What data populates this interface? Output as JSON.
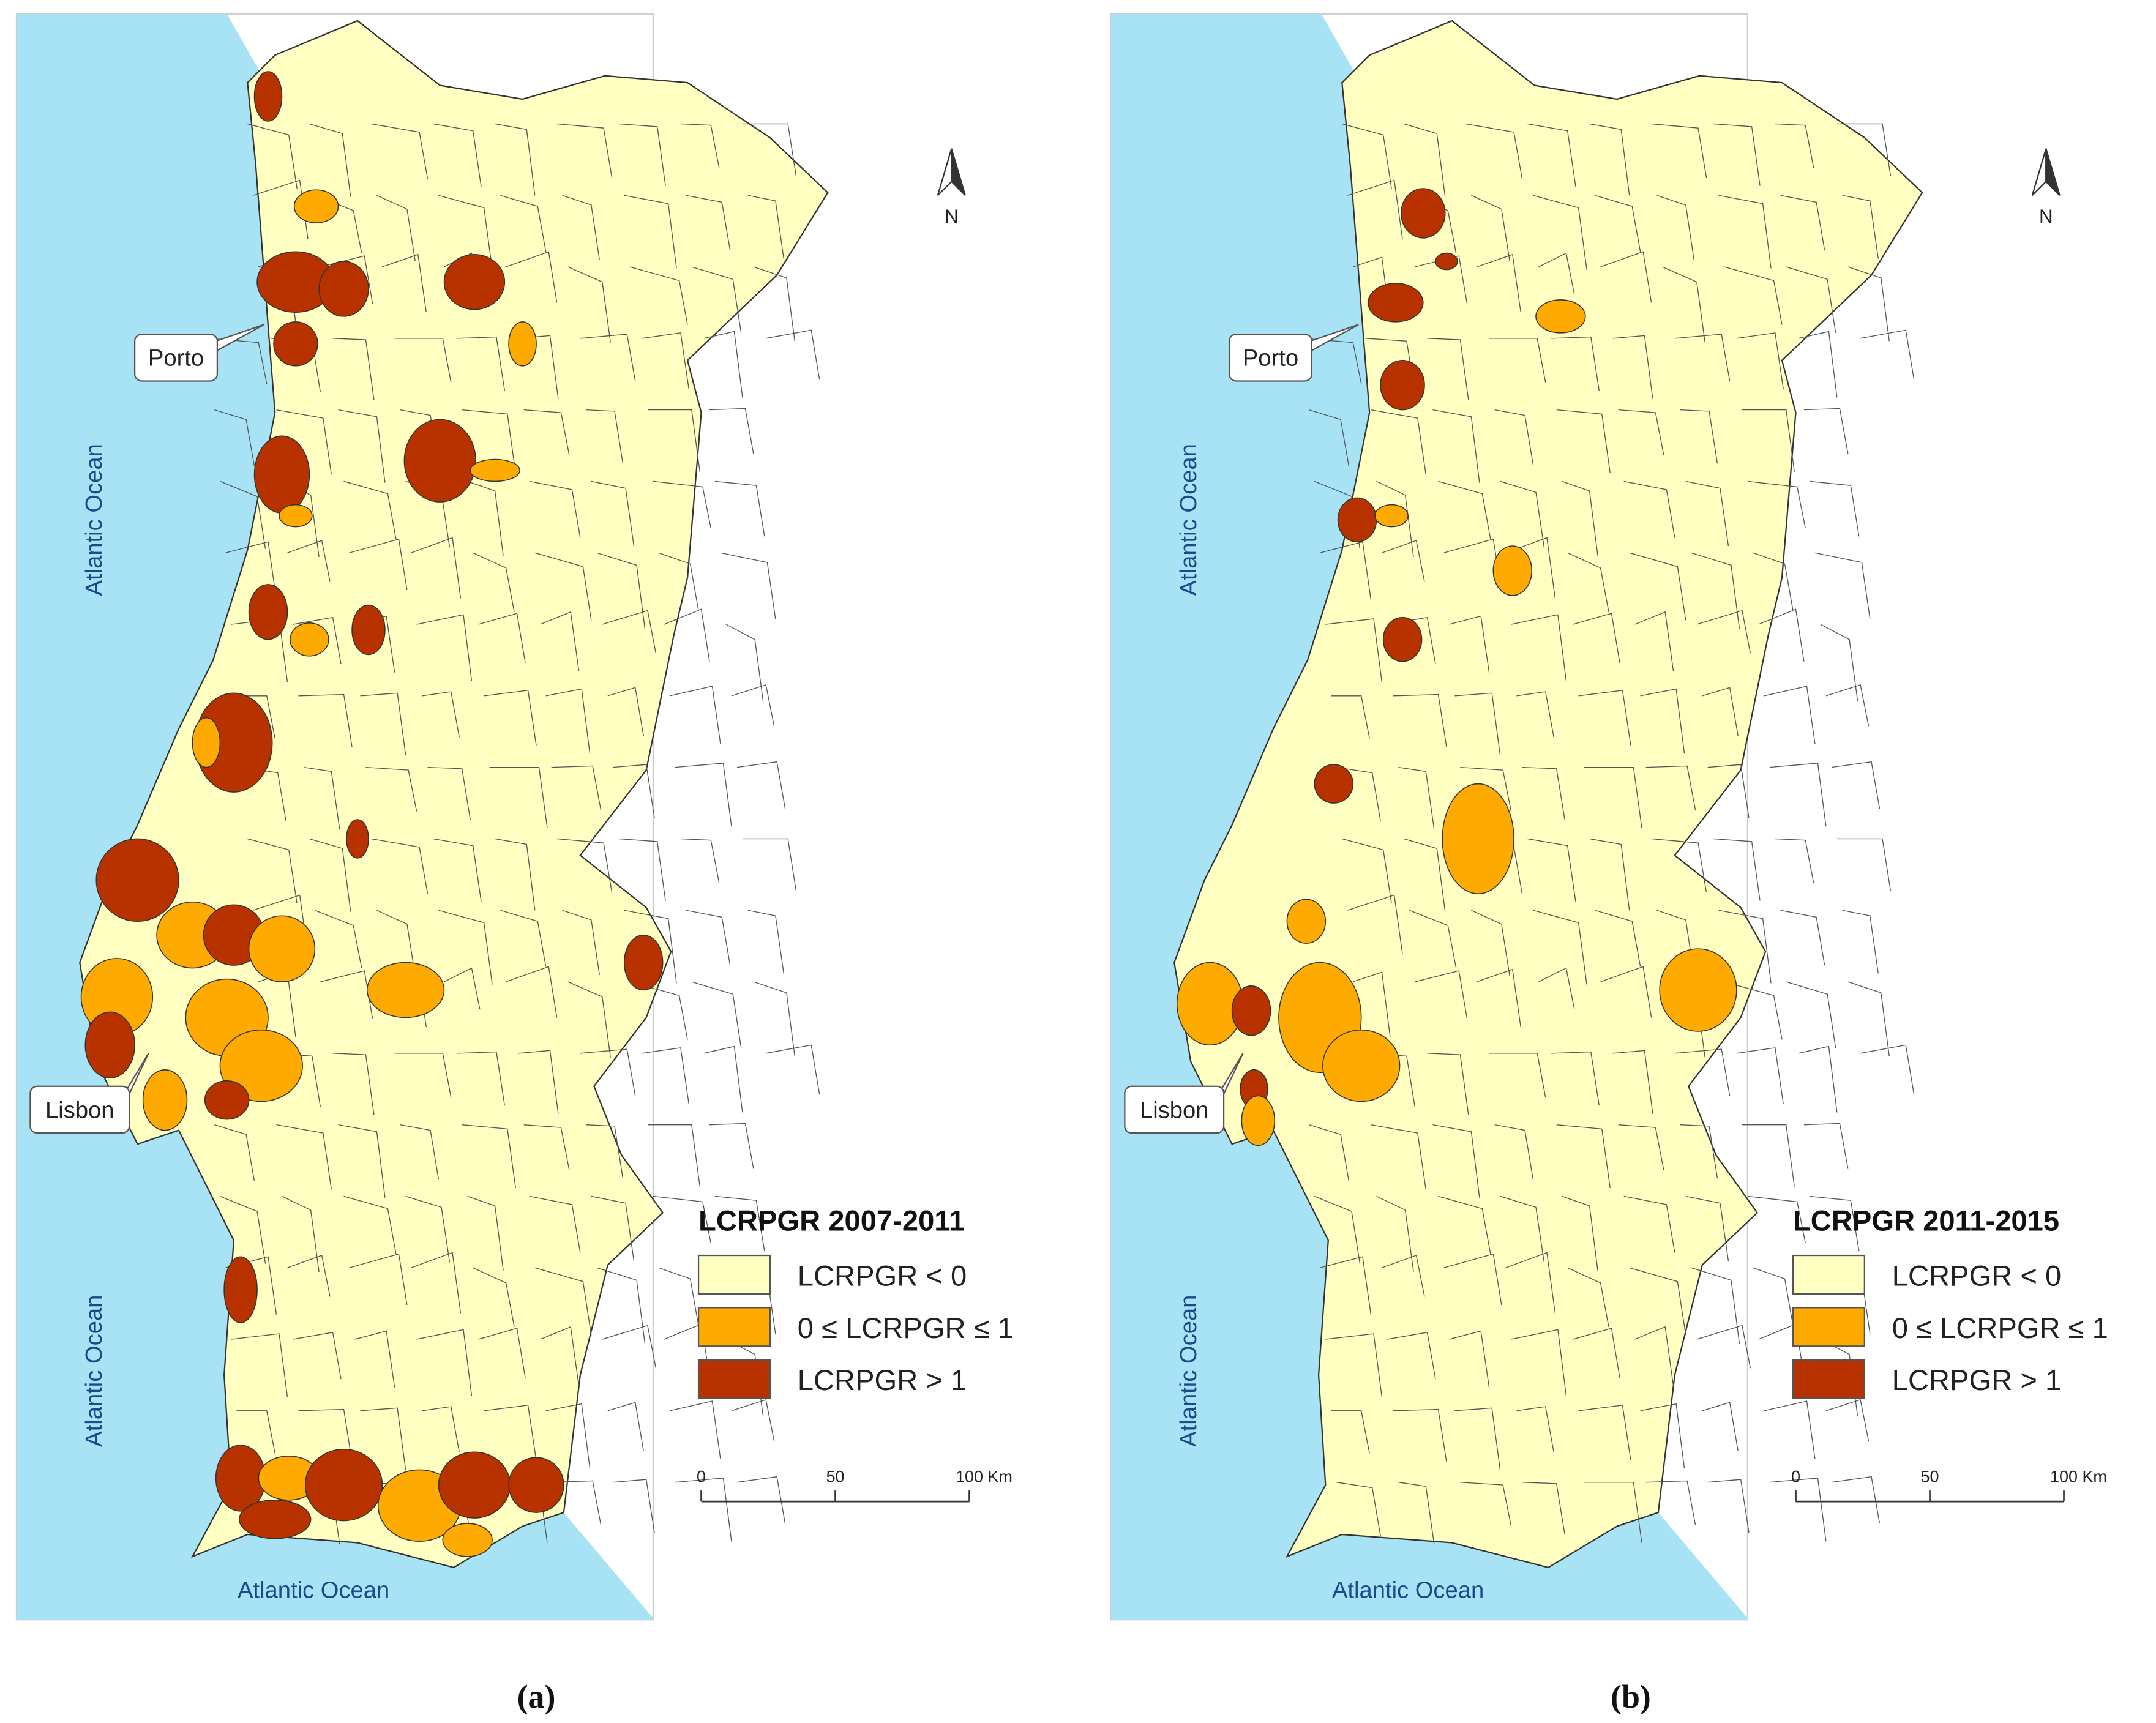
{
  "panels": [
    {
      "caption": "(a)",
      "oceans": [
        "Atlantic Ocean",
        "Atlantic Ocean",
        "Atlantic Ocean"
      ],
      "cities": [
        "Porto",
        "Lisbon"
      ],
      "north": "N",
      "legend": {
        "title": "LCRPGR 2007-2011",
        "items": [
          {
            "label": "LCRPGR < 0",
            "color": "#ffffc2"
          },
          {
            "label": "0 ≤ LCRPGR ≤ 1",
            "color": "#ffaa00"
          },
          {
            "label": "LCRPGR > 1",
            "color": "#b83200"
          }
        ]
      },
      "scale": {
        "ticks": [
          0,
          50,
          {
            "value": 100,
            "label": "100 Km"
          }
        ]
      }
    },
    {
      "caption": "(b)",
      "oceans": [
        "Atlantic Ocean",
        "Atlantic Ocean",
        "Atlantic Ocean"
      ],
      "cities": [
        "Porto",
        "Lisbon"
      ],
      "north": "N",
      "legend": {
        "title": "LCRPGR 2011-2015",
        "items": [
          {
            "label": "LCRPGR < 0",
            "color": "#ffffc2"
          },
          {
            "label": "0 ≤ LCRPGR ≤ 1",
            "color": "#ffaa00"
          },
          {
            "label": "LCRPGR > 1",
            "color": "#b83200"
          }
        ]
      },
      "scale": {
        "ticks": [
          0,
          50,
          {
            "value": 100,
            "label": "100 Km"
          }
        ]
      }
    }
  ]
}
